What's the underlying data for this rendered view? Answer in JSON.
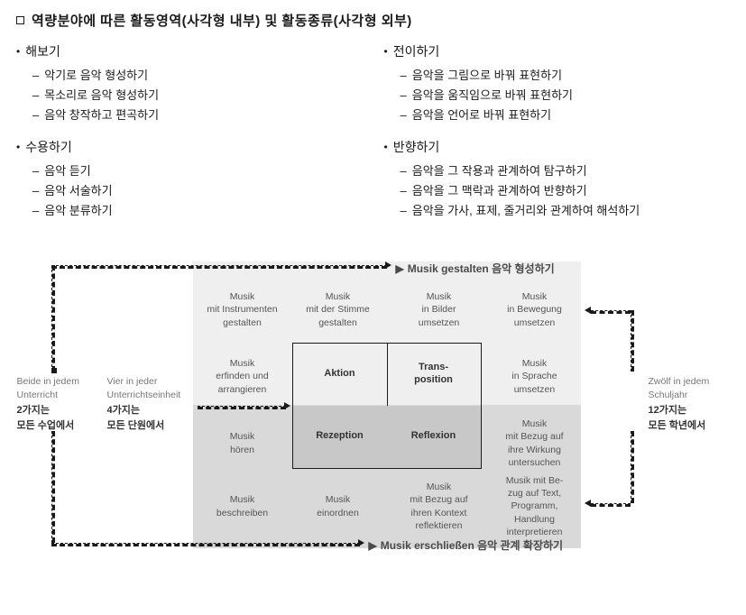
{
  "title": "역량분야에 따른 활동영역(사각형 내부) 및 활동종류(사각형 외부)",
  "colLeft": [
    {
      "head": "해보기",
      "items": [
        "악기로 음악 형성하기",
        "목소리로 음악 형성하기",
        "음악 창작하고 편곡하기"
      ]
    },
    {
      "head": "수용하기",
      "items": [
        "음악 듣기",
        "음악 서술하기",
        "음악 분류하기"
      ]
    }
  ],
  "colRight": [
    {
      "head": "전이하기",
      "items": [
        "음악을 그림으로 바꿔 표현하기",
        "음악을 움직임으로 바꿔 표현하기",
        "음악을 언어로 바꿔 표현하기"
      ]
    },
    {
      "head": "반향하기",
      "items": [
        "음악을 그 작용과 관계하여 탐구하기",
        "음악을 그 맥락과 관계하여 반향하기",
        "음악을 가사, 표제, 줄거리와 관계하여 해석하기"
      ]
    }
  ],
  "diagram": {
    "axisTop": "Musik gestalten  음악 형성하기",
    "axisBottom": "Musik erschließen  음악 관계 확장하기",
    "inner": {
      "tl": "Aktion",
      "tr": "Trans-\nposition",
      "bl": "Rezeption",
      "br": "Reflexion"
    },
    "outer": {
      "r1": [
        "Musik\nmit Instrumenten\ngestalten",
        "Musik\nmit der Stimme\ngestalten",
        "Musik\nin Bilder\numsetzen",
        "Musik\nin Bewegung\numsetzen"
      ],
      "r2": [
        "Musik\nerfinden und\narrangieren",
        "",
        "",
        "Musik\nin Sprache\numsetzen"
      ],
      "r3": [
        "Musik\nhören",
        "",
        "",
        "Musik\nmit Bezug auf\nihre Wirkung\nuntersuchen"
      ],
      "r4": [
        "Musik\nbeschreiben",
        "Musik\neinordnen",
        "Musik\nmit Bezug auf\nihren Kontext\nreflektieren",
        "Musik mit Be-\nzug auf Text,\nProgramm,\nHandlung\ninterpretieren"
      ]
    },
    "leftNotes": {
      "a_de": "Beide in jedem\nUnterricht",
      "a_ko": "2가지는\n모든 수업에서",
      "b_de": "Vier in jeder\nUnterrichtseinheit",
      "b_ko": "4가지는\n모든 단원에서"
    },
    "rightNote": {
      "de": "Zwölf in jedem\nSchuljahr",
      "ko": "12가지는\n모든 학년에서"
    },
    "colors": {
      "bg_light": "#efefef",
      "bg_dark": "#d9d9d9",
      "inner_dark": "#c8c8c8",
      "border": "#1a1a1a",
      "text_gray": "#555555"
    }
  }
}
